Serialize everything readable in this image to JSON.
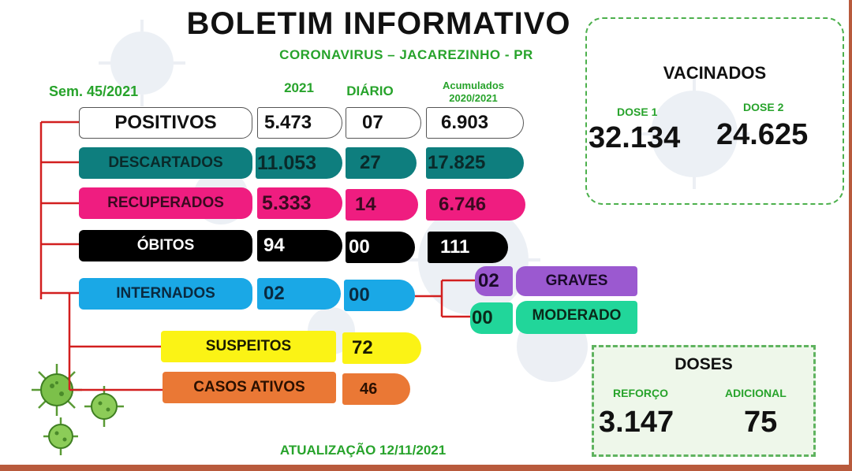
{
  "header": {
    "title": "BOLETIM INFORMATIVO",
    "subtitle": "CORONAVIRUS – JACAREZINHO - PR",
    "week": "Sem. 45/2021"
  },
  "columns": {
    "year": "2021",
    "daily": "DIÁRIO",
    "cumulative_line1": "Acumulados",
    "cumulative_line2": "2020/2021"
  },
  "rows": {
    "positivos": {
      "label": "POSITIVOS",
      "year": "5.473",
      "daily": "07",
      "cumulative": "6.903"
    },
    "descartados": {
      "label": "DESCARTADOS",
      "year": "11.053",
      "daily": "27",
      "cumulative": "17.825"
    },
    "recuperados": {
      "label": "RECUPERADOS",
      "year": "5.333",
      "daily": "14",
      "cumulative": "6.746"
    },
    "obitos": {
      "label": "ÓBITOS",
      "year": "94",
      "daily": "00",
      "cumulative": "111"
    },
    "internados": {
      "label": "INTERNADOS",
      "year": "02",
      "daily": "00"
    },
    "suspeitos": {
      "label": "SUSPEITOS",
      "value": "72"
    },
    "casos_ativos": {
      "label": "CASOS ATIVOS",
      "value": "46"
    }
  },
  "internados_detail": {
    "graves": {
      "label": "GRAVES",
      "value": "02"
    },
    "moderado": {
      "label": "MODERADO",
      "value": "00"
    }
  },
  "vacinados": {
    "title": "VACINADOS",
    "dose1_label": "DOSE 1",
    "dose1_value": "32.134",
    "dose2_label": "DOSE 2",
    "dose2_value": "24.625"
  },
  "doses": {
    "title": "DOSES",
    "reforco_label": "REFORÇO",
    "reforco_value": "3.147",
    "adicional_label": "ADICIONAL",
    "adicional_value": "75"
  },
  "footer": {
    "update": "ATUALIZAÇÃO 12/11/2021"
  },
  "colors": {
    "green_text": "#27a32b",
    "teal": "#0e7e7e",
    "pink": "#ef1d80",
    "blue": "#1aa8e6",
    "yellow": "#fbf315",
    "orange": "#ea7835",
    "purple": "#9b59d0",
    "mint": "#21d69a",
    "tree_lines": "#d21f1f",
    "frame": "#b85a3c"
  }
}
